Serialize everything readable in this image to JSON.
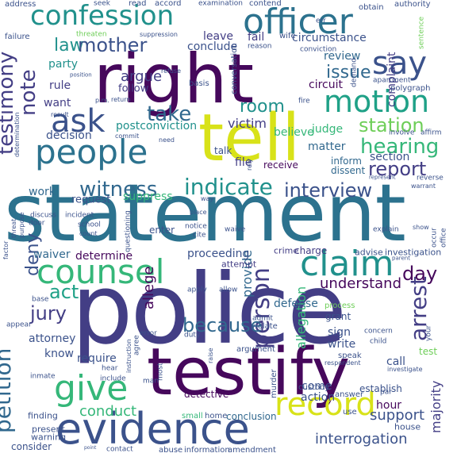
{
  "palette": {
    "dark_purple": "#46085c",
    "indigo": "#433e85",
    "blue": "#3b528b",
    "slate_blue": "#31688e",
    "teal_blue": "#2c728e",
    "teal": "#21918c",
    "green_teal": "#1fa187",
    "green": "#35b779",
    "light_green": "#6ece58",
    "yellow_green": "#b5de2b",
    "yellow": "#d8e219"
  },
  "words": [
    {
      "text": "statement"
    },
    {
      "text": "police"
    },
    {
      "text": "testify"
    },
    {
      "text": "right"
    },
    {
      "text": "tell"
    },
    {
      "text": "evidence"
    },
    {
      "text": "officer"
    },
    {
      "text": "confession"
    },
    {
      "text": "people"
    },
    {
      "text": "counsel"
    },
    {
      "text": "claim"
    },
    {
      "text": "motion"
    },
    {
      "text": "record"
    },
    {
      "text": "say"
    },
    {
      "text": "give"
    },
    {
      "text": "ask"
    },
    {
      "text": "person"
    },
    {
      "text": "interview"
    },
    {
      "text": "indicate"
    },
    {
      "text": "witness"
    },
    {
      "text": "hearing"
    },
    {
      "text": "report"
    },
    {
      "text": "station"
    },
    {
      "text": "because"
    },
    {
      "text": "arrest"
    },
    {
      "text": "testimony"
    },
    {
      "text": "petition"
    },
    {
      "text": "jury"
    },
    {
      "text": "act"
    },
    {
      "text": "day"
    },
    {
      "text": "law"
    },
    {
      "text": "mother"
    },
    {
      "text": "note"
    },
    {
      "text": "take"
    },
    {
      "text": "room"
    },
    {
      "text": "issue"
    },
    {
      "text": "argue"
    },
    {
      "text": "interrogation"
    },
    {
      "text": "deny"
    },
    {
      "text": "support"
    },
    {
      "text": "conduct"
    },
    {
      "text": "majority"
    },
    {
      "text": "allege"
    },
    {
      "text": "allegation"
    },
    {
      "text": "understand"
    },
    {
      "text": "provide"
    },
    {
      "text": "waiver"
    },
    {
      "text": "determine"
    },
    {
      "text": "victim"
    },
    {
      "text": "postconviction"
    },
    {
      "text": "decision"
    },
    {
      "text": "work"
    },
    {
      "text": "want"
    },
    {
      "text": "rule"
    },
    {
      "text": "party"
    },
    {
      "text": "conclude"
    },
    {
      "text": "leave"
    },
    {
      "text": "circumstance"
    },
    {
      "text": "review"
    },
    {
      "text": "circuit"
    },
    {
      "text": "complaint"
    },
    {
      "text": "fail"
    },
    {
      "text": "follow"
    },
    {
      "text": "suppress"
    },
    {
      "text": "request"
    },
    {
      "text": "file"
    },
    {
      "text": "receive"
    },
    {
      "text": "believe"
    },
    {
      "text": "matter"
    },
    {
      "text": "section"
    },
    {
      "text": "judge"
    },
    {
      "text": "inform"
    },
    {
      "text": "dissent"
    },
    {
      "text": "talk"
    },
    {
      "text": "defense"
    },
    {
      "text": "proceeding"
    },
    {
      "text": "attempt"
    },
    {
      "text": "charge"
    },
    {
      "text": "crime"
    },
    {
      "text": "investigation"
    },
    {
      "text": "advise"
    },
    {
      "text": "process"
    },
    {
      "text": "grant"
    },
    {
      "text": "attorney"
    },
    {
      "text": "know"
    },
    {
      "text": "require"
    },
    {
      "text": "come"
    },
    {
      "text": "call"
    },
    {
      "text": "write"
    },
    {
      "text": "sign"
    },
    {
      "text": "custody"
    },
    {
      "text": "action"
    },
    {
      "text": "detective"
    },
    {
      "text": "conclusion"
    },
    {
      "text": "establish"
    },
    {
      "text": "test"
    },
    {
      "text": "hour"
    },
    {
      "text": "house"
    },
    {
      "text": "consider"
    },
    {
      "text": "finding"
    },
    {
      "text": "present"
    },
    {
      "text": "warning"
    },
    {
      "text": "small"
    },
    {
      "text": "home"
    },
    {
      "text": "information"
    },
    {
      "text": "abuse"
    },
    {
      "text": "amendment"
    },
    {
      "text": "contact"
    },
    {
      "text": "address"
    },
    {
      "text": "seek"
    },
    {
      "text": "read"
    },
    {
      "text": "accord"
    },
    {
      "text": "examination"
    },
    {
      "text": "contend"
    },
    {
      "text": "obtain"
    },
    {
      "text": "authority"
    },
    {
      "text": "failure"
    },
    {
      "text": "threaten"
    },
    {
      "text": "suppression"
    },
    {
      "text": "wife"
    },
    {
      "text": "err"
    },
    {
      "text": "conviction"
    },
    {
      "text": "reason"
    },
    {
      "text": "sentence"
    },
    {
      "text": "position"
    },
    {
      "text": "refuse"
    },
    {
      "text": "demand"
    },
    {
      "text": "apartment"
    },
    {
      "text": "polygraph"
    },
    {
      "text": "basis"
    },
    {
      "text": "conversation"
    },
    {
      "text": "p.m."
    },
    {
      "text": "return"
    },
    {
      "text": "fire"
    },
    {
      "text": "involve"
    },
    {
      "text": "affirm"
    },
    {
      "text": "result"
    },
    {
      "text": "commit"
    },
    {
      "text": "need"
    },
    {
      "text": "rely"
    },
    {
      "text": "represent"
    },
    {
      "text": "warrant"
    },
    {
      "text": "reverse"
    },
    {
      "text": "determination"
    },
    {
      "text": "discuss"
    },
    {
      "text": "door"
    },
    {
      "text": "incident"
    },
    {
      "text": "school"
    },
    {
      "text": "count"
    },
    {
      "text": "way"
    },
    {
      "text": "place"
    },
    {
      "text": "enter"
    },
    {
      "text": "notice"
    },
    {
      "text": "waive"
    },
    {
      "text": "cite"
    },
    {
      "text": "questioning"
    },
    {
      "text": "explain"
    },
    {
      "text": "show"
    },
    {
      "text": "parent"
    },
    {
      "text": "occur"
    },
    {
      "text": "office"
    },
    {
      "text": "factor"
    },
    {
      "text": "threat"
    },
    {
      "text": "purpose"
    },
    {
      "text": "base"
    },
    {
      "text": "apply"
    },
    {
      "text": "allow"
    },
    {
      "text": "admit"
    },
    {
      "text": "violate"
    },
    {
      "text": "respondent"
    },
    {
      "text": "appear"
    },
    {
      "text": "error"
    },
    {
      "text": "duty"
    },
    {
      "text": "instruction"
    },
    {
      "text": "raise"
    },
    {
      "text": "argument"
    },
    {
      "text": "speak"
    },
    {
      "text": "concern"
    },
    {
      "text": "child"
    },
    {
      "text": "your"
    },
    {
      "text": "agree"
    },
    {
      "text": "hear"
    },
    {
      "text": "inmate"
    },
    {
      "text": "include"
    },
    {
      "text": "man"
    },
    {
      "text": "most"
    },
    {
      "text": "murder"
    },
    {
      "text": "answer"
    },
    {
      "text": "investigate"
    },
    {
      "text": "par"
    },
    {
      "text": "use"
    },
    {
      "text": "point"
    }
  ]
}
